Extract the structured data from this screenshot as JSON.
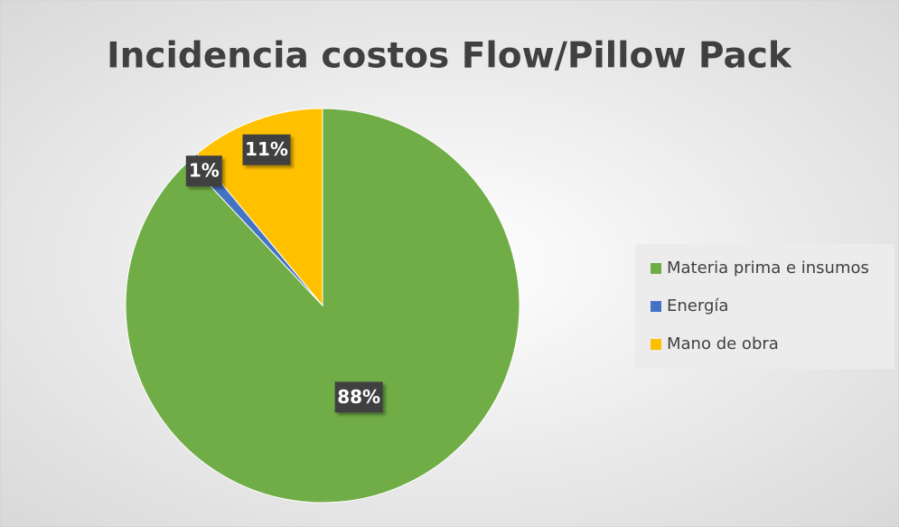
{
  "chart_data": {
    "type": "pie",
    "title": "Incidencia costos Flow/Pillow Pack",
    "categories": [
      "Materia prima e insumos",
      "Energía",
      "Mano de obra"
    ],
    "values": [
      88,
      1,
      11
    ],
    "value_labels": [
      "88%",
      "1%",
      "11%"
    ],
    "colors": [
      "#70ad47",
      "#4472c4",
      "#ffc000"
    ],
    "legend": "right"
  }
}
